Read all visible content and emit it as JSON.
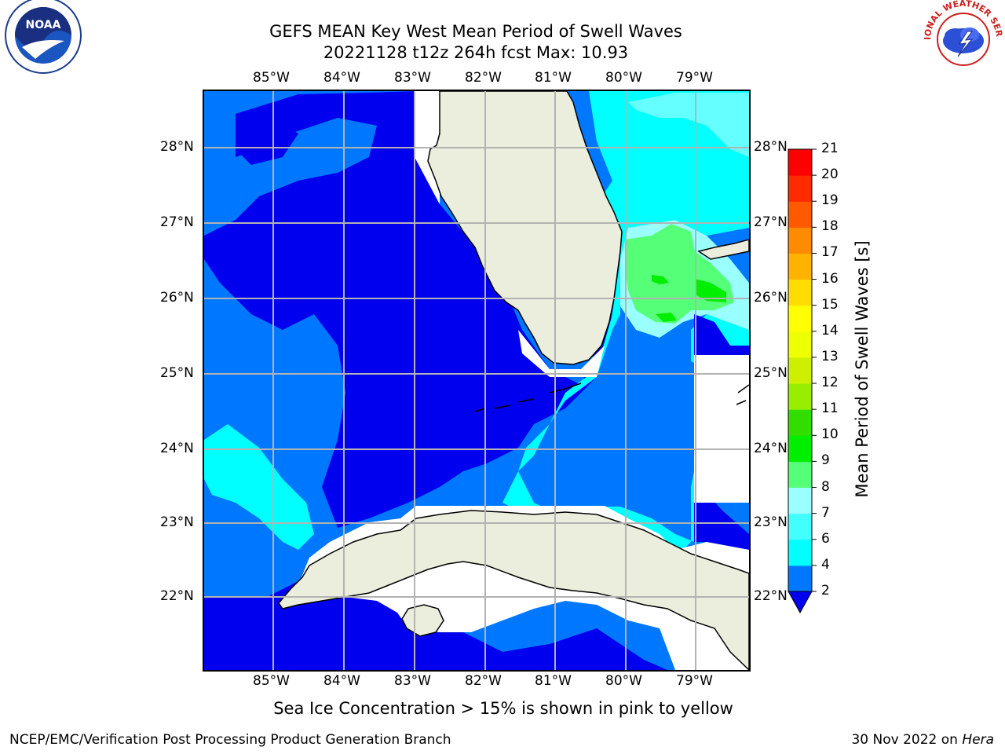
{
  "header": {
    "title_line1": "GEFS MEAN Key West Mean Period of Swell Waves",
    "title_line2": "20221128 t12z 264h fcst   Max: 10.93"
  },
  "logos": {
    "left_text": "NOAA",
    "right_text": "NATIONAL WEATHER SERVICE"
  },
  "map": {
    "lon_labels": [
      "85°W",
      "84°W",
      "83°W",
      "82°W",
      "81°W",
      "80°W",
      "79°W"
    ],
    "lat_labels": [
      "28°N",
      "27°N",
      "26°N",
      "25°N",
      "24°N",
      "23°N",
      "22°N"
    ],
    "colors": {
      "land": "#eceedd",
      "no_data": "#ffffff",
      "grid": "#b3b3b3",
      "coast": "#000000"
    }
  },
  "colorbar": {
    "label": "Mean Period of Swell Waves [s]",
    "tick_labels": [
      "2",
      "4",
      "6",
      "7",
      "8",
      "9",
      "10",
      "11",
      "12",
      "13",
      "14",
      "15",
      "16",
      "17",
      "18",
      "19",
      "20",
      "21"
    ],
    "colors": [
      "#0000ff",
      "#0077ff",
      "#00ffff",
      "#44ffff",
      "#99ffff",
      "#55ff77",
      "#00ee00",
      "#33dd00",
      "#99ee00",
      "#ccf000",
      "#eeff00",
      "#ffff00",
      "#ffdd00",
      "#ffb300",
      "#ff8c00",
      "#ff5a00",
      "#ff2a00",
      "#ff0000"
    ],
    "under_color": "#0000ee"
  },
  "note": "Sea Ice Concentration > 15% is shown in pink to yellow",
  "footer": {
    "left": "NCEP/EMC/Verification Post Processing Product Generation Branch",
    "right_prefix": "30 Nov 2022 on ",
    "right_italic": "Hera"
  }
}
